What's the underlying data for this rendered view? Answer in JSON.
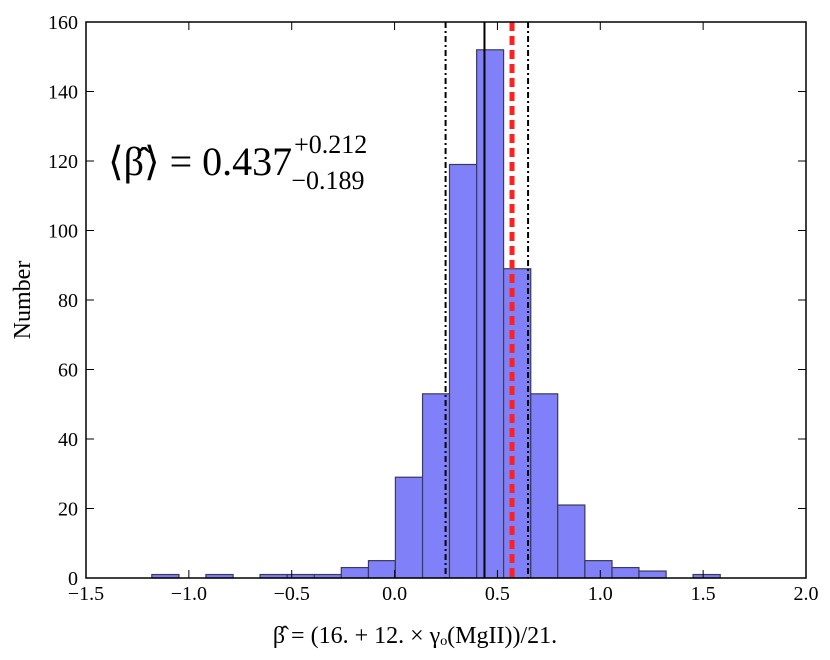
{
  "chart_data": {
    "type": "histogram",
    "xlabel": "β̂ = (16. + 12. × γₒ(MgII))/21.",
    "ylabel": "Number",
    "bins": [
      -1.18,
      -1.048,
      -0.917,
      -0.785,
      -0.654,
      -0.522,
      -0.39,
      -0.259,
      -0.127,
      0.004,
      0.136,
      0.267,
      0.399,
      0.53,
      0.662,
      0.793,
      0.925,
      1.057,
      1.188,
      1.32,
      1.451,
      1.583
    ],
    "values": [
      1,
      0,
      1,
      0,
      1,
      1,
      1,
      3,
      5,
      29,
      53,
      119,
      152,
      89,
      53,
      21,
      5,
      3,
      2,
      0,
      1
    ],
    "color": "#8080f8",
    "xlim": [
      -1.5,
      2.0
    ],
    "xticks": [
      {
        "value": -1.5,
        "label": "−1.5"
      },
      {
        "value": -1.0,
        "label": "−1.0"
      },
      {
        "value": -0.5,
        "label": "−0.5"
      },
      {
        "value": 0.0,
        "label": "0.0"
      },
      {
        "value": 0.5,
        "label": "0.5"
      },
      {
        "value": 1.0,
        "label": "1.0"
      },
      {
        "value": 1.5,
        "label": "1.5"
      },
      {
        "value": 2.0,
        "label": "2.0"
      }
    ],
    "ylim": [
      0,
      160
    ],
    "yticks": [
      0,
      20,
      40,
      60,
      80,
      100,
      120,
      140,
      160
    ],
    "vlines": [
      {
        "value": 0.437,
        "color": "#000000",
        "style": "solid"
      },
      {
        "value": 0.248,
        "color": "#000000",
        "style": "dashdot"
      },
      {
        "value": 0.649,
        "color": "#000000",
        "style": "dashdot"
      },
      {
        "value": 0.571,
        "color": "#ff2020",
        "style": "dashed"
      }
    ],
    "annotation": {
      "main": "⟨β̂⟩ = 0.437",
      "sup": "+0.212",
      "sub": "−0.189"
    }
  }
}
